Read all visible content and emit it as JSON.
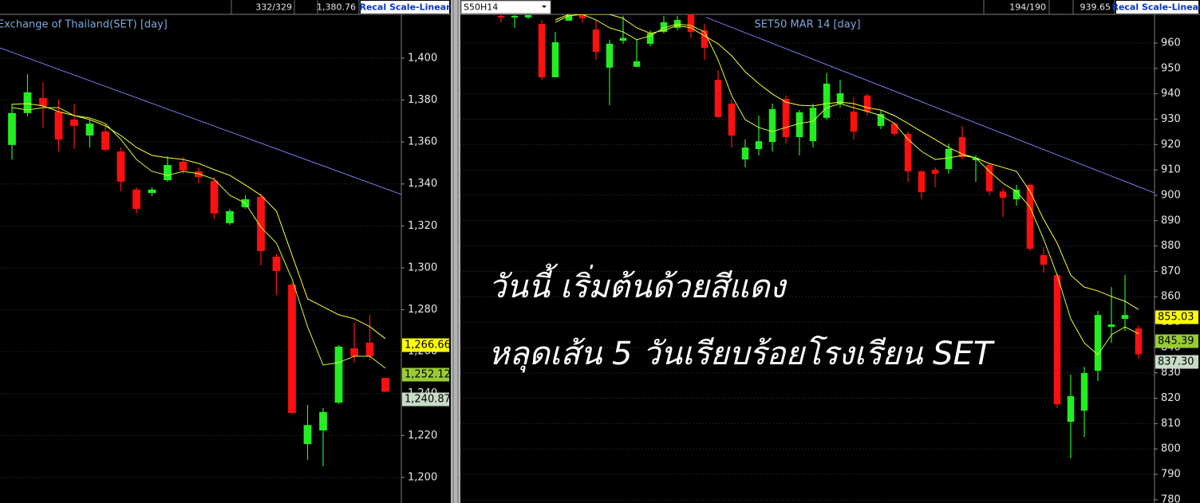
{
  "chart_data": [
    {
      "type": "candlestick",
      "title": "Exchange of Thailand(SET) [day]",
      "header": {
        "stats": [
          "332/329",
          "1,380.76"
        ],
        "button": "Recal Scale-Linear"
      },
      "ylim": [
        1187.8,
        1420.9
      ],
      "yticks": [
        {
          "value": 1200,
          "label": "1,200"
        },
        {
          "value": 1220,
          "label": "1,220"
        },
        {
          "value": 1240,
          "label": "1,240"
        },
        {
          "value": 1260,
          "label": "1,260"
        },
        {
          "value": 1280,
          "label": "1,280"
        },
        {
          "value": 1300,
          "label": "1,300"
        },
        {
          "value": 1320,
          "label": "1,320"
        },
        {
          "value": 1340,
          "label": "1,340"
        },
        {
          "value": 1360,
          "label": "1,360"
        },
        {
          "value": 1380,
          "label": "1,380"
        },
        {
          "value": 1400,
          "label": "1,400"
        }
      ],
      "grid": true,
      "up_color": "#22ee22",
      "down_color": "#ff1010",
      "candles": [
        {
          "open": 1358.6,
          "high": 1378.3,
          "low": 1351.7,
          "close": 1373.8
        },
        {
          "open": 1373.8,
          "high": 1392.4,
          "low": 1372.2,
          "close": 1383.7
        },
        {
          "open": 1381.0,
          "high": 1388.6,
          "low": 1366.9,
          "close": 1377.2
        },
        {
          "open": 1374.5,
          "high": 1380.2,
          "low": 1355.5,
          "close": 1361.2
        },
        {
          "open": 1370.7,
          "high": 1378.3,
          "low": 1356.7,
          "close": 1367.7
        },
        {
          "open": 1363.1,
          "high": 1370.7,
          "low": 1357.4,
          "close": 1368.8
        },
        {
          "open": 1365.0,
          "high": 1368.8,
          "low": 1355.5,
          "close": 1356.3
        },
        {
          "open": 1355.5,
          "high": 1357.4,
          "low": 1336.5,
          "close": 1341.1
        },
        {
          "open": 1337.3,
          "high": 1338.4,
          "low": 1325.9,
          "close": 1328.1
        },
        {
          "open": 1335.7,
          "high": 1338.4,
          "low": 1334.2,
          "close": 1337.3
        },
        {
          "open": 1341.8,
          "high": 1353.2,
          "low": 1341.1,
          "close": 1349.0
        },
        {
          "open": 1350.6,
          "high": 1352.9,
          "low": 1344.9,
          "close": 1346.4
        },
        {
          "open": 1346.0,
          "high": 1347.9,
          "low": 1340.3,
          "close": 1343.3
        },
        {
          "open": 1341.4,
          "high": 1343.3,
          "low": 1323.2,
          "close": 1325.9
        },
        {
          "open": 1321.3,
          "high": 1328.1,
          "low": 1320.5,
          "close": 1327.0
        },
        {
          "open": 1328.9,
          "high": 1334.6,
          "low": 1328.1,
          "close": 1332.7
        },
        {
          "open": 1333.8,
          "high": 1335.4,
          "low": 1301.1,
          "close": 1308.0
        },
        {
          "open": 1305.3,
          "high": 1306.8,
          "low": 1287.1,
          "close": 1298.5
        },
        {
          "open": 1292.0,
          "high": 1292.8,
          "low": 1230.0,
          "close": 1230.8
        },
        {
          "open": 1215.9,
          "high": 1234.6,
          "low": 1208.4,
          "close": 1225.0
        },
        {
          "open": 1222.4,
          "high": 1233.1,
          "low": 1205.3,
          "close": 1231.2
        },
        {
          "open": 1235.7,
          "high": 1263.1,
          "low": 1235.0,
          "close": 1262.4
        },
        {
          "open": 1261.6,
          "high": 1273.8,
          "low": 1254.8,
          "close": 1257.8
        },
        {
          "open": 1264.3,
          "high": 1277.6,
          "low": 1255.9,
          "close": 1257.8
        },
        {
          "open": 1247.5,
          "high": 1247.5,
          "low": 1240.7,
          "close": 1240.9
        }
      ],
      "series": [
        {
          "color": "#ffff33",
          "values": [
            1378.0,
            1378.3,
            1377.2,
            1374.5,
            1372.6,
            1370.7,
            1367.7,
            1363.1,
            1357.4,
            1353.6,
            1352.5,
            1351.7,
            1349.8,
            1346.8,
            1344.1,
            1339.5,
            1334.6,
            1327.0,
            1306.1,
            1285.2,
            1281.4,
            1277.6,
            1275.7,
            1271.9,
            1266.2
          ]
        },
        {
          "color": "#ccff33",
          "values": [
            1376.4,
            1375.3,
            1376.4,
            1376.4,
            1372.6,
            1371.5,
            1368.8,
            1361.2,
            1351.7,
            1346.0,
            1344.1,
            1346.0,
            1344.9,
            1342.2,
            1334.6,
            1330.8,
            1319.4,
            1311.8,
            1294.7,
            1271.9,
            1253.6,
            1254.8,
            1257.8,
            1257.8,
            1252.1
          ]
        }
      ],
      "trendline": {
        "color": "#7b7bf0",
        "values": [
          1404.9,
          1335.0
        ]
      },
      "price_labels": [
        {
          "value": 1266.66,
          "label": "1,266.66",
          "color": "#ffff00"
        },
        {
          "value": 1252.12,
          "label": "1,252.12",
          "color": "#99cc33"
        },
        {
          "value": 1240.87,
          "label": "1,240.87",
          "color": "#c8dcc8"
        }
      ]
    },
    {
      "type": "candlestick",
      "title": "SET50 MAR 14   [day]",
      "header": {
        "symbol": "S50H14",
        "stats": [
          "194/190",
          "939.65"
        ],
        "button": "Recal Scale-Linear"
      },
      "ylim": [
        778.7,
        971.3
      ],
      "yticks": [
        780,
        790,
        800,
        810,
        820,
        830,
        840,
        850,
        860,
        870,
        880,
        890,
        900,
        910,
        920,
        930,
        940,
        950,
        960
      ],
      "grid": true,
      "up_color": "#22ee22",
      "down_color": "#ff1010",
      "candles": [
        {
          "open": 970.7,
          "high": 971.0,
          "low": 968.2,
          "close": 970.1
        },
        {
          "open": 970.1,
          "high": 971.0,
          "low": 966.0,
          "close": 970.7
        },
        {
          "open": 970.1,
          "high": 971.0,
          "low": 969.5,
          "close": 971.0
        },
        {
          "open": 967.5,
          "high": 969.1,
          "low": 945.5,
          "close": 946.5
        },
        {
          "open": 946.5,
          "high": 964.4,
          "low": 946.5,
          "close": 960.3
        },
        {
          "open": 968.8,
          "high": 971.0,
          "low": 968.8,
          "close": 971.0
        },
        {
          "open": 971.0,
          "high": 971.3,
          "low": 968.0,
          "close": 969.8
        },
        {
          "open": 965.3,
          "high": 969.1,
          "low": 953.4,
          "close": 956.5
        },
        {
          "open": 950.3,
          "high": 961.3,
          "low": 935.5,
          "close": 959.7
        },
        {
          "open": 960.9,
          "high": 970.7,
          "low": 959.7,
          "close": 962.0
        },
        {
          "open": 950.6,
          "high": 961.3,
          "low": 950.6,
          "close": 952.8
        },
        {
          "open": 959.7,
          "high": 965.0,
          "low": 958.7,
          "close": 963.8
        },
        {
          "open": 964.4,
          "high": 970.7,
          "low": 963.8,
          "close": 968.2
        },
        {
          "open": 966.0,
          "high": 970.7,
          "low": 965.0,
          "close": 969.1
        },
        {
          "open": 971.3,
          "high": 971.3,
          "low": 961.9,
          "close": 964.4
        },
        {
          "open": 965.0,
          "high": 967.5,
          "low": 953.4,
          "close": 958.1
        },
        {
          "open": 945.5,
          "high": 949.3,
          "low": 930.5,
          "close": 930.8
        },
        {
          "open": 936.1,
          "high": 937.7,
          "low": 918.8,
          "close": 923.5
        },
        {
          "open": 914.1,
          "high": 922.0,
          "low": 911.0,
          "close": 918.8
        },
        {
          "open": 918.2,
          "high": 931.4,
          "low": 915.7,
          "close": 921.3
        },
        {
          "open": 921.0,
          "high": 936.1,
          "low": 917.3,
          "close": 933.9
        },
        {
          "open": 938.0,
          "high": 939.3,
          "low": 920.4,
          "close": 922.9
        },
        {
          "open": 922.9,
          "high": 933.6,
          "low": 915.7,
          "close": 932.7
        },
        {
          "open": 921.3,
          "high": 936.1,
          "low": 918.8,
          "close": 934.5
        },
        {
          "open": 930.5,
          "high": 948.1,
          "low": 929.8,
          "close": 944.0
        },
        {
          "open": 936.1,
          "high": 945.5,
          "low": 934.5,
          "close": 940.2
        },
        {
          "open": 933.0,
          "high": 938.6,
          "low": 922.0,
          "close": 925.1
        },
        {
          "open": 939.3,
          "high": 939.9,
          "low": 931.4,
          "close": 933.0
        },
        {
          "open": 927.3,
          "high": 933.6,
          "low": 926.1,
          "close": 932.0
        },
        {
          "open": 928.3,
          "high": 928.9,
          "low": 923.5,
          "close": 924.2
        },
        {
          "open": 924.2,
          "high": 925.1,
          "low": 905.3,
          "close": 909.4
        },
        {
          "open": 909.4,
          "high": 909.7,
          "low": 898.4,
          "close": 901.2
        },
        {
          "open": 910.0,
          "high": 911.0,
          "low": 903.1,
          "close": 908.5
        },
        {
          "open": 910.3,
          "high": 920.4,
          "low": 908.5,
          "close": 918.2
        },
        {
          "open": 922.9,
          "high": 927.3,
          "low": 914.1,
          "close": 915.1
        },
        {
          "open": 913.8,
          "high": 915.7,
          "low": 905.3,
          "close": 914.7
        },
        {
          "open": 911.9,
          "high": 912.5,
          "low": 900.0,
          "close": 901.5
        },
        {
          "open": 901.5,
          "high": 902.8,
          "low": 891.5,
          "close": 899.0
        },
        {
          "open": 898.4,
          "high": 904.1,
          "low": 895.9,
          "close": 902.2
        },
        {
          "open": 904.1,
          "high": 904.7,
          "low": 878.0,
          "close": 878.9
        },
        {
          "open": 876.4,
          "high": 879.5,
          "low": 869.5,
          "close": 872.6
        },
        {
          "open": 868.5,
          "high": 869.2,
          "low": 816.1,
          "close": 817.6
        },
        {
          "open": 810.7,
          "high": 829.3,
          "low": 796.3,
          "close": 820.8
        },
        {
          "open": 815.1,
          "high": 832.4,
          "low": 804.7,
          "close": 829.9
        },
        {
          "open": 830.8,
          "high": 854.4,
          "low": 826.8,
          "close": 852.8
        },
        {
          "open": 848.1,
          "high": 863.8,
          "low": 841.8,
          "close": 849.1
        },
        {
          "open": 851.3,
          "high": 868.6,
          "low": 846.5,
          "close": 852.8
        },
        {
          "open": 847.5,
          "high": 848.7,
          "low": 835.5,
          "close": 837.3
        }
      ],
      "series": [
        {
          "color": "#ffff33",
          "values": [
            null,
            null,
            null,
            null,
            969.1,
            971.3,
            971.3,
            971.3,
            971.3,
            969.7,
            966.0,
            963.8,
            965.0,
            966.9,
            966.0,
            962.8,
            959.7,
            955.0,
            948.7,
            944.0,
            939.9,
            936.7,
            935.5,
            935.2,
            936.1,
            936.7,
            936.1,
            934.5,
            933.6,
            931.4,
            928.3,
            925.1,
            922.0,
            918.8,
            916.3,
            914.7,
            912.5,
            911.0,
            909.4,
            901.5,
            890.5,
            881.1,
            868.5,
            863.8,
            862.3,
            860.1,
            858.2,
            855.0
          ]
        },
        {
          "color": "#ccff33",
          "values": [
            null,
            null,
            null,
            null,
            968.2,
            970.7,
            971.3,
            969.1,
            966.0,
            964.4,
            961.3,
            962.8,
            966.0,
            967.5,
            966.9,
            964.4,
            953.4,
            939.3,
            929.8,
            926.7,
            925.1,
            926.7,
            928.3,
            929.2,
            934.5,
            936.1,
            934.5,
            933.0,
            931.4,
            928.3,
            922.0,
            917.3,
            914.1,
            914.7,
            915.7,
            914.7,
            909.4,
            904.7,
            901.5,
            895.3,
            882.7,
            868.5,
            851.3,
            841.8,
            837.1,
            845.0,
            848.1,
            845.4
          ]
        }
      ],
      "trendline": {
        "color": "#7b7bf0",
        "values": [
          970.1,
          900.9
        ]
      },
      "price_labels": [
        {
          "value": 855.03,
          "label": "855.03",
          "color": "#ffff00"
        },
        {
          "value": 845.39,
          "label": "845.39",
          "color": "#99cc33"
        },
        {
          "value": 837.3,
          "label": "837.30",
          "color": "#c8dcc8"
        }
      ],
      "annotations": [
        "วันนี้ เริ่มต้นด้วยสีแดง",
        "หลุดเส้น 5 วันเรียบร้อยโรงเรียน SET"
      ]
    }
  ]
}
